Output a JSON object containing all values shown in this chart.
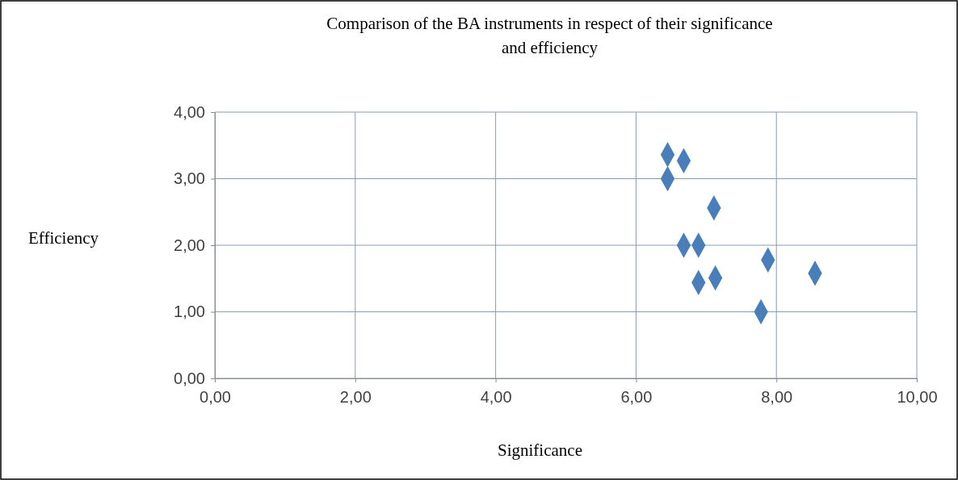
{
  "chart_data": {
    "type": "scatter",
    "title": "Comparison of the BA instruments in respect of their significance\nand efficiency",
    "xlabel": "Significance",
    "ylabel": "Efficiency",
    "x": [
      6.45,
      6.68,
      6.45,
      7.11,
      6.68,
      6.89,
      7.88,
      8.55,
      6.89,
      7.13,
      7.78
    ],
    "values": [
      3.36,
      3.27,
      3.0,
      2.56,
      2.0,
      2.0,
      1.78,
      1.58,
      1.44,
      1.51,
      1.0
    ],
    "color": "#4a7ebb",
    "marker": "diamond",
    "grid": true,
    "xlim": [
      0,
      10
    ],
    "ylim": [
      0,
      4
    ],
    "xticks": [
      {
        "value": 0,
        "label": "0,00"
      },
      {
        "value": 2,
        "label": "2,00"
      },
      {
        "value": 4,
        "label": "4,00"
      },
      {
        "value": 6,
        "label": "6,00"
      },
      {
        "value": 8,
        "label": "8,00"
      },
      {
        "value": 10,
        "label": "10,00"
      }
    ],
    "yticks": [
      {
        "value": 0,
        "label": "0,00"
      },
      {
        "value": 1,
        "label": "1,00"
      },
      {
        "value": 2,
        "label": "2,00"
      },
      {
        "value": 3,
        "label": "3,00"
      },
      {
        "value": 4,
        "label": "4,00"
      }
    ]
  }
}
